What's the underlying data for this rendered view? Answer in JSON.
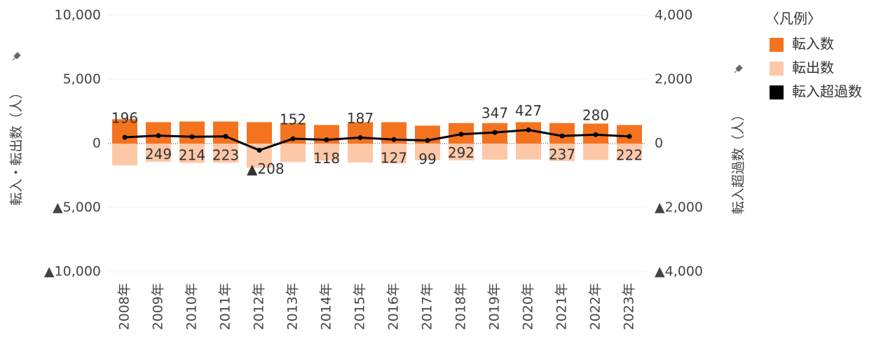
{
  "chart_data": {
    "type": "bar_line",
    "categories": [
      "2008年",
      "2009年",
      "2010年",
      "2011年",
      "2012年",
      "2013年",
      "2014年",
      "2015年",
      "2016年",
      "2017年",
      "2018年",
      "2019年",
      "2020年",
      "2021年",
      "2022年",
      "2023年"
    ],
    "y_label": "転入・転出数（人）",
    "y2_label": "転入超過数（人）",
    "legend_title": "〈凡例〉",
    "series": [
      {
        "name": "転入数",
        "color": "#f4731f",
        "type": "bar",
        "axis": "y",
        "values": [
          1900,
          1670,
          1720,
          1720,
          1670,
          1600,
          1450,
          1670,
          1670,
          1400,
          1600,
          1600,
          1670,
          1600,
          1560,
          1450
        ]
      },
      {
        "name": "転出数",
        "color": "#fcc8a8",
        "type": "bar",
        "axis": "y",
        "values": [
          -1700,
          -1420,
          -1510,
          -1500,
          -1880,
          -1450,
          -1330,
          -1480,
          -1540,
          -1300,
          -1310,
          -1250,
          -1240,
          -1360,
          -1280,
          -1230
        ]
      },
      {
        "name": "転入超過数",
        "color": "#000000",
        "type": "line",
        "axis": "y2",
        "values": [
          196,
          249,
          214,
          223,
          -208,
          152,
          118,
          187,
          127,
          99,
          292,
          347,
          427,
          237,
          280,
          222
        ],
        "value_labels": [
          "196",
          "249",
          "214",
          "223",
          "▲208",
          "152",
          "118",
          "187",
          "127",
          "99",
          "292",
          "347",
          "427",
          "237",
          "280",
          "222"
        ]
      }
    ],
    "ylim": [
      -10000,
      10000
    ],
    "yticks": [
      {
        "value": 10000,
        "label": "10,000"
      },
      {
        "value": 5000,
        "label": "5,000"
      },
      0,
      {
        "value": -5000,
        "label": "▲5,000"
      },
      {
        "value": -10000,
        "label": "▲10,000"
      }
    ],
    "y2lim": [
      -4000,
      4000
    ],
    "y2ticks": [
      {
        "value": 4000,
        "label": "4,000"
      },
      {
        "value": 2000,
        "label": "2,000"
      },
      0,
      {
        "value": -2000,
        "label": "▲2,000"
      },
      {
        "value": -4000,
        "label": "▲4,000"
      }
    ],
    "grid": true,
    "legend": "right"
  }
}
